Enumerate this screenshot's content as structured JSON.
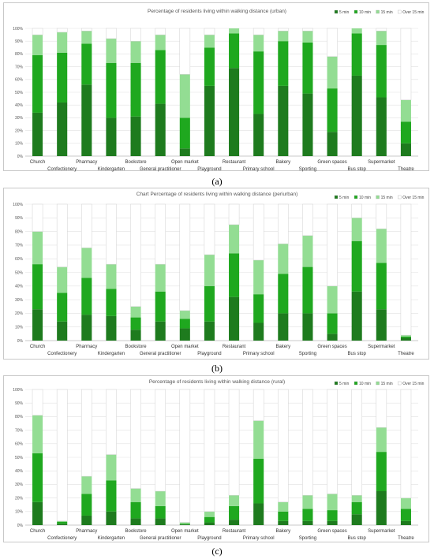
{
  "figure": {
    "panel_labels": [
      "(a)",
      "(b)",
      "(c)"
    ]
  },
  "colors": {
    "5 min": "#1e7b1e",
    "10 min": "#1fa81f",
    "15 min": "#93dd93",
    "Over 15 min": "#ffffff",
    "grid": "#e2e2e2"
  },
  "chart_data": [
    {
      "type": "bar",
      "stacked": true,
      "title": "Percentage of residents living within walking distance (urban)",
      "legend": [
        "5 min",
        "10 min",
        "15 min",
        "Over 15 min"
      ],
      "legend_position": "top-right",
      "ylim": [
        0,
        100
      ],
      "y_ticks": [
        "0%",
        "10%",
        "20%",
        "30%",
        "40%",
        "50%",
        "60%",
        "70%",
        "80%",
        "90%",
        "100%"
      ],
      "grid": true,
      "categories": [
        "Church",
        "Confectionery",
        "Pharmacy",
        "Kindergarten",
        "Bookstore",
        "General practitioner",
        "Open market",
        "Playground",
        "Restaurant",
        "Primary school",
        "Bakery",
        "Sporting",
        "Green spaces",
        "Bus stop",
        "Supermarket",
        "Theatre"
      ],
      "series": [
        {
          "name": "5 min",
          "values": [
            34,
            42,
            56,
            30,
            31,
            41,
            6,
            55,
            69,
            33,
            55,
            49,
            19,
            63,
            46,
            10
          ]
        },
        {
          "name": "10 min",
          "values": [
            45,
            39,
            32,
            43,
            42,
            42,
            24,
            30,
            27,
            49,
            35,
            40,
            34,
            33,
            41,
            17
          ]
        },
        {
          "name": "15 min",
          "values": [
            16,
            16,
            10,
            19,
            17,
            12,
            34,
            10,
            4,
            13,
            8,
            9,
            25,
            4,
            11,
            17
          ]
        },
        {
          "name": "Over 15 min",
          "values": [
            5,
            3,
            2,
            8,
            10,
            5,
            36,
            5,
            0,
            5,
            2,
            2,
            22,
            0,
            2,
            56
          ]
        }
      ]
    },
    {
      "type": "bar",
      "stacked": true,
      "title": "Chart Percentage of residents living within walking distance (periurban)",
      "legend": [
        "5 min",
        "10 min",
        "15 min",
        "Over 15 min"
      ],
      "legend_position": "top-right",
      "ylim": [
        0,
        100
      ],
      "y_ticks": [
        "0%",
        "10%",
        "20%",
        "30%",
        "40%",
        "50%",
        "60%",
        "70%",
        "80%",
        "90%",
        "100%"
      ],
      "grid": true,
      "categories": [
        "Church",
        "Confectionery",
        "Pharmacy",
        "Kindergarten",
        "Bookstore",
        "General practitioner",
        "Open market",
        "Playground",
        "Restaurant",
        "Primary school",
        "Bakery",
        "Sporting",
        "Green spaces",
        "Bus stop",
        "Supermarket",
        "Theatre"
      ],
      "series": [
        {
          "name": "5 min",
          "values": [
            23,
            14,
            19,
            18,
            8,
            14,
            9,
            14,
            32,
            13,
            20,
            20,
            5,
            36,
            23,
            2
          ]
        },
        {
          "name": "10 min",
          "values": [
            33,
            21,
            27,
            20,
            9,
            22,
            7,
            26,
            32,
            21,
            29,
            34,
            15,
            37,
            34,
            1
          ]
        },
        {
          "name": "15 min",
          "values": [
            24,
            19,
            22,
            18,
            8,
            20,
            6,
            23,
            21,
            25,
            22,
            23,
            20,
            17,
            25,
            1
          ]
        },
        {
          "name": "Over 15 min",
          "values": [
            20,
            46,
            32,
            44,
            75,
            44,
            78,
            37,
            15,
            41,
            29,
            23,
            60,
            10,
            18,
            96
          ]
        }
      ]
    },
    {
      "type": "bar",
      "stacked": true,
      "title": "Percentage of residents living within walking distance (rural)",
      "legend": [
        "5 min",
        "10 min",
        "15 min",
        "Over 15 min"
      ],
      "legend_position": "top-right",
      "ylim": [
        0,
        100
      ],
      "y_ticks": [
        "0%",
        "10%",
        "20%",
        "30%",
        "40%",
        "50%",
        "60%",
        "70%",
        "80%",
        "90%",
        "100%"
      ],
      "grid": true,
      "categories": [
        "Church",
        "Confectionery",
        "Pharmacy",
        "Kindergarten",
        "Bookstore",
        "General practitioner",
        "Open market",
        "Playground",
        "Restaurant",
        "Primary school",
        "Bakery",
        "Sporting",
        "Green spaces",
        "Bus stop",
        "Supermarket",
        "Theatre"
      ],
      "series": [
        {
          "name": "5 min",
          "values": [
            17,
            1,
            7,
            10,
            5,
            5,
            0.5,
            2,
            4,
            16,
            3,
            3,
            3,
            8,
            25,
            3
          ]
        },
        {
          "name": "10 min",
          "values": [
            36,
            1.5,
            16,
            23,
            12,
            9,
            0.5,
            4,
            10,
            33,
            7,
            9,
            8,
            9,
            29,
            9
          ]
        },
        {
          "name": "15 min",
          "values": [
            28,
            0.5,
            13,
            19,
            10,
            11,
            1,
            4,
            8,
            28,
            7,
            10,
            12,
            5,
            18,
            8
          ]
        },
        {
          "name": "Over 15 min",
          "values": [
            19,
            97,
            64,
            48,
            73,
            75,
            98,
            90,
            78,
            23,
            83,
            78,
            77,
            78,
            28,
            80
          ]
        }
      ]
    }
  ]
}
